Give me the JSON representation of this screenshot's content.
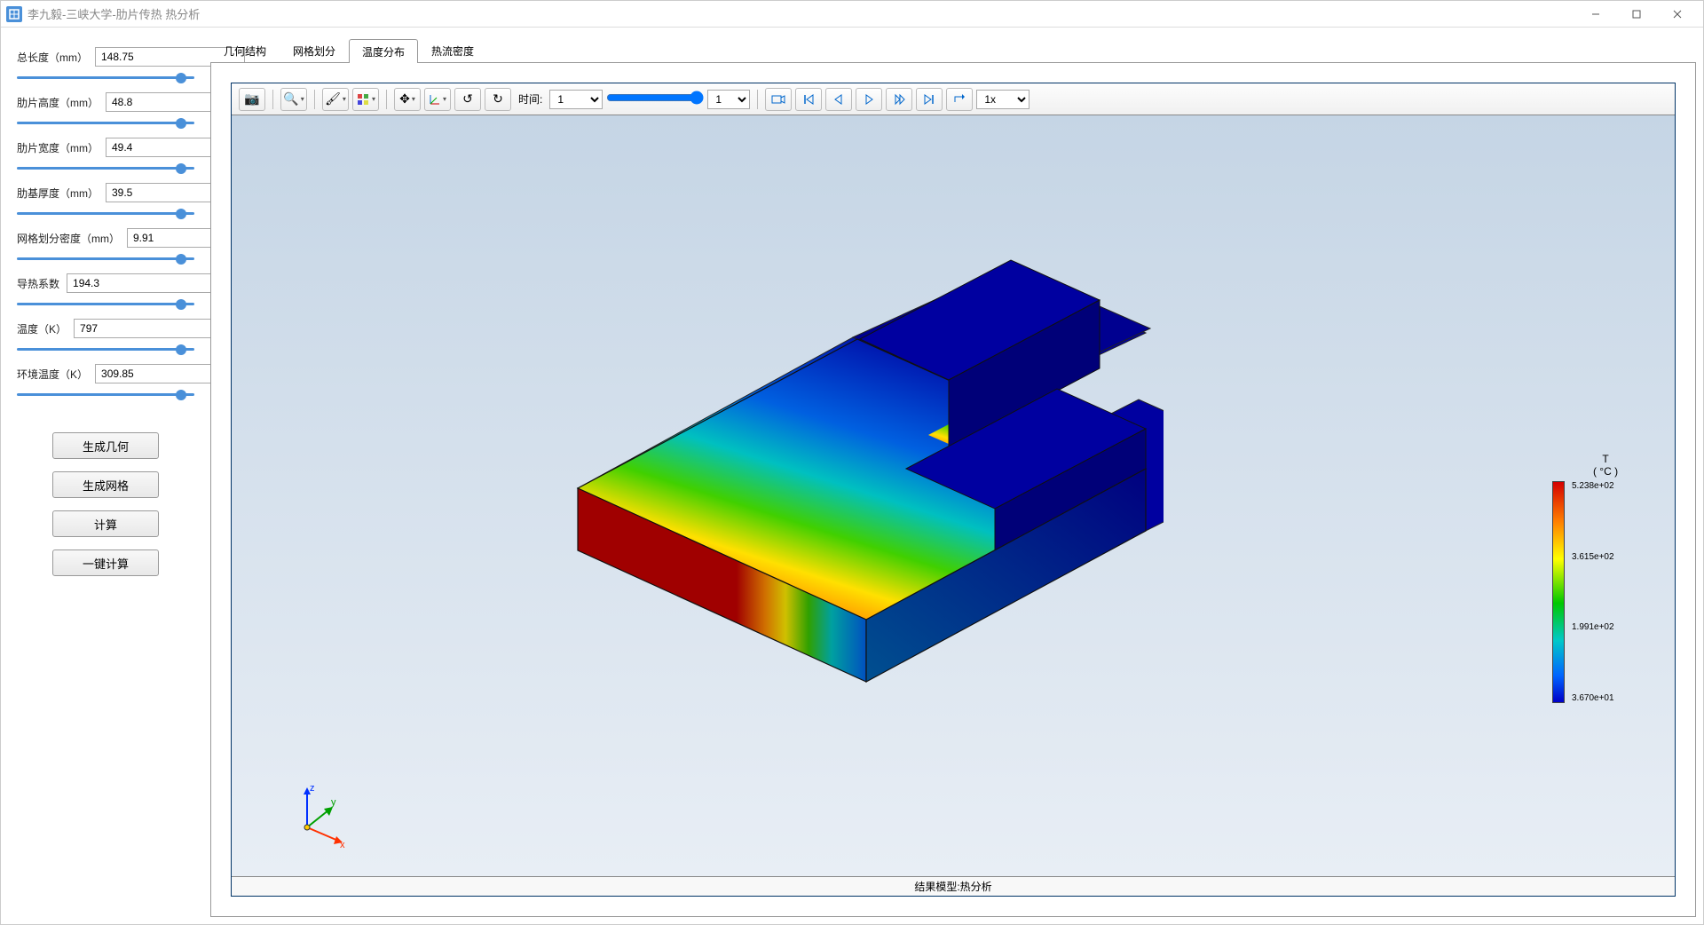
{
  "window": {
    "title": "李九毅-三峡大学-肋片传热 热分析"
  },
  "params": [
    {
      "label": "总长度（mm）",
      "value": "148.75",
      "slider": 95
    },
    {
      "label": "肋片高度（mm）",
      "value": "48.8",
      "slider": 95
    },
    {
      "label": "肋片宽度（mm）",
      "value": "49.4",
      "slider": 95
    },
    {
      "label": "肋基厚度（mm）",
      "value": "39.5",
      "slider": 95
    },
    {
      "label": "网格划分密度（mm）",
      "value": "9.91",
      "slider": 95
    },
    {
      "label": "导热系数",
      "value": "194.3",
      "slider": 95
    },
    {
      "label": "温度（K）",
      "value": "797",
      "slider": 95
    },
    {
      "label": "环境温度（K）",
      "value": "309.85",
      "slider": 95
    }
  ],
  "actions": {
    "gen_geom": "生成几何",
    "gen_mesh": "生成网格",
    "compute": "计算",
    "one_click": "一键计算"
  },
  "tabs": [
    {
      "label": "几何结构",
      "active": false
    },
    {
      "label": "网格划分",
      "active": false
    },
    {
      "label": "温度分布",
      "active": true
    },
    {
      "label": "热流密度",
      "active": false
    }
  ],
  "toolbar": {
    "time_label": "时间:",
    "time_value": "1",
    "frame_value": "1",
    "speed_value": "1x"
  },
  "legend": {
    "title_line1": "T",
    "title_line2": "( °C )",
    "ticks": [
      "5.238e+02",
      "3.615e+02",
      "1.991e+02",
      "3.670e+01"
    ],
    "colors": [
      "#d40000",
      "#ff7f00",
      "#ffff00",
      "#00c800",
      "#00c8c8",
      "#0064ff",
      "#0000c8"
    ]
  },
  "footer": "结果模型:热分析",
  "axes": {
    "x": "x",
    "y": "y",
    "z": "z"
  },
  "viewport": {
    "bg_top": "#c5d5e5",
    "bg_bottom": "#e8eef5"
  }
}
